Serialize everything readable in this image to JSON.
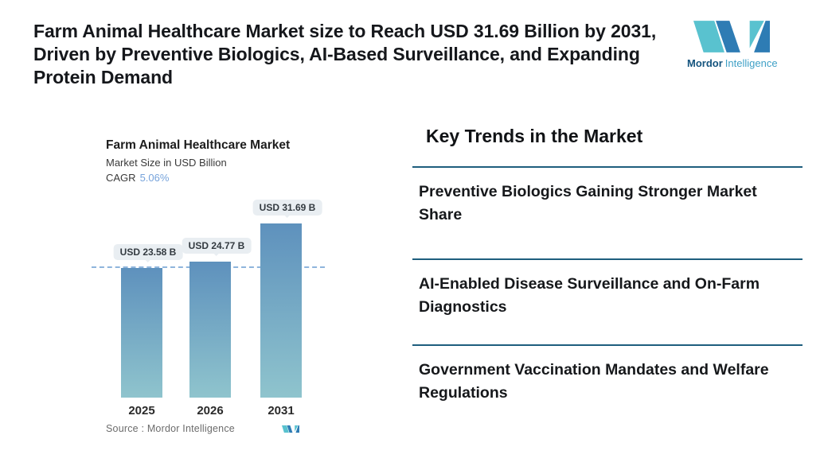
{
  "header": {
    "headline": "Farm Animal Healthcare Market size to Reach USD 31.69 Billion by 2031, Driven by Preventive Biologics, AI-Based Surveillance, and Expanding Protein Demand",
    "brand": {
      "bold": "Mordor",
      "light": "Intelligence"
    }
  },
  "chart": {
    "title": "Farm Animal Healthcare Market",
    "subtitle": "Market Size in USD Billion",
    "cagr_label": "CAGR",
    "cagr_value": "5.06%",
    "source_label": "Source :  Mordor Intelligence"
  },
  "chart_data": {
    "type": "bar",
    "categories": [
      "2025",
      "2026",
      "2031"
    ],
    "values": [
      23.58,
      24.77,
      31.69
    ],
    "value_labels": [
      "USD 23.58 B",
      "USD 24.77 B",
      "USD 31.69 B"
    ],
    "title": "Farm Animal Healthcare Market",
    "xlabel": "",
    "ylabel": "Market Size in USD Billion",
    "cagr": "5.06%",
    "reference_line": 23.58,
    "ylim": [
      0,
      36
    ],
    "grid": false,
    "legend": false,
    "bar_gradient_top": "#5E91BD",
    "bar_gradient_bottom": "#8FC4CD",
    "reference_line_color": "#8FB5DC"
  },
  "trends": {
    "heading": "Key Trends in the Market",
    "items": [
      "Preventive Biologics Gaining Stronger Market Share",
      "AI-Enabled Disease Surveillance and On-Farm Diagnostics",
      "Government Vaccination Mandates and Welfare Regulations"
    ]
  },
  "colors": {
    "divider": "#1E5E7E",
    "logo_teal": "#59C2CF",
    "logo_blue": "#2E7CB4",
    "cagr_blue": "#76A3DB",
    "headline_text": "#15171B"
  }
}
